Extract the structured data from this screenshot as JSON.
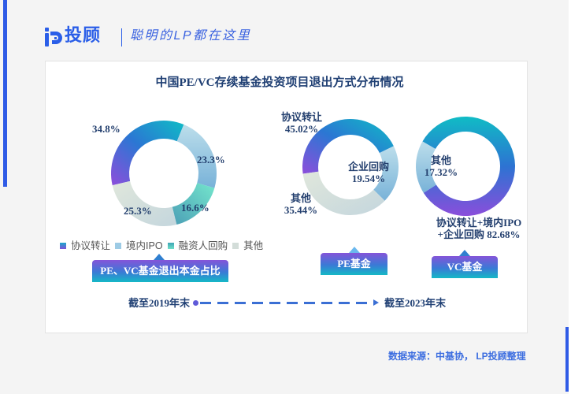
{
  "header": {
    "brand": "投顾",
    "logo_icon": "lp-logo-icon",
    "tagline": "聪明的LP都在这里"
  },
  "card": {
    "title": "中国PE/VC存续基金投资项目退出方式分布情况"
  },
  "legend": [
    {
      "label": "协议转让",
      "color": "#2a7bd4"
    },
    {
      "label": "境内IPO",
      "color": "#9dcbe5"
    },
    {
      "label": "融资人回购",
      "color": "#5cc8c0"
    },
    {
      "label": "其他",
      "color": "#d3ddd9"
    }
  ],
  "tags": {
    "overall": "PE、VC基金退出本金占比",
    "pe": "PE基金",
    "vc": "VC基金"
  },
  "timeline": {
    "start": "截至2019年末",
    "end": "截至2023年末"
  },
  "source": "数据来源：中基协， LP投顾整理",
  "colors": {
    "brand_blue": "#2a5ee8",
    "text_navy": "#1f3f73",
    "gradient_teal": "#12bbc5",
    "gradient_blue": "#2c77d2",
    "gradient_purple": "#8b4fdb",
    "light_blue": "#9dcbe5",
    "mint": "#6fe0c8",
    "gray": "#d3ddd9"
  },
  "chart_data": [
    {
      "type": "pie",
      "title": "PE、VC基金退出本金占比",
      "subtitle": "截至2019年末",
      "categories": [
        "协议转让",
        "境内IPO",
        "融资人回购",
        "其他"
      ],
      "values": [
        34.8,
        23.3,
        16.6,
        25.3
      ],
      "unit": "%",
      "legend_position": "bottom",
      "data_labels": [
        {
          "lines": [
            "34.8%"
          ]
        },
        {
          "lines": [
            "23.3%"
          ]
        },
        {
          "lines": [
            "16.6%"
          ]
        },
        {
          "lines": [
            "25.3%"
          ]
        }
      ]
    },
    {
      "type": "pie",
      "title": "PE基金",
      "subtitle": "截至2023年末",
      "categories": [
        "协议转让",
        "企业回购",
        "其他"
      ],
      "values": [
        45.02,
        19.54,
        35.44
      ],
      "unit": "%",
      "data_labels": [
        {
          "lines": [
            "协议转让",
            "45.02%"
          ]
        },
        {
          "lines": [
            "企业回购",
            "19.54%"
          ]
        },
        {
          "lines": [
            "其他",
            "35.44%"
          ]
        }
      ]
    },
    {
      "type": "pie",
      "title": "VC基金",
      "subtitle": "截至2023年末",
      "categories": [
        "协议转让+境内IPO+企业回购",
        "其他"
      ],
      "values": [
        82.68,
        17.32
      ],
      "unit": "%",
      "data_labels": [
        {
          "lines": [
            "协议转让+境内IPO",
            "+企业回购 82.68%"
          ]
        },
        {
          "lines": [
            "其他",
            "17.32%"
          ]
        }
      ]
    }
  ]
}
